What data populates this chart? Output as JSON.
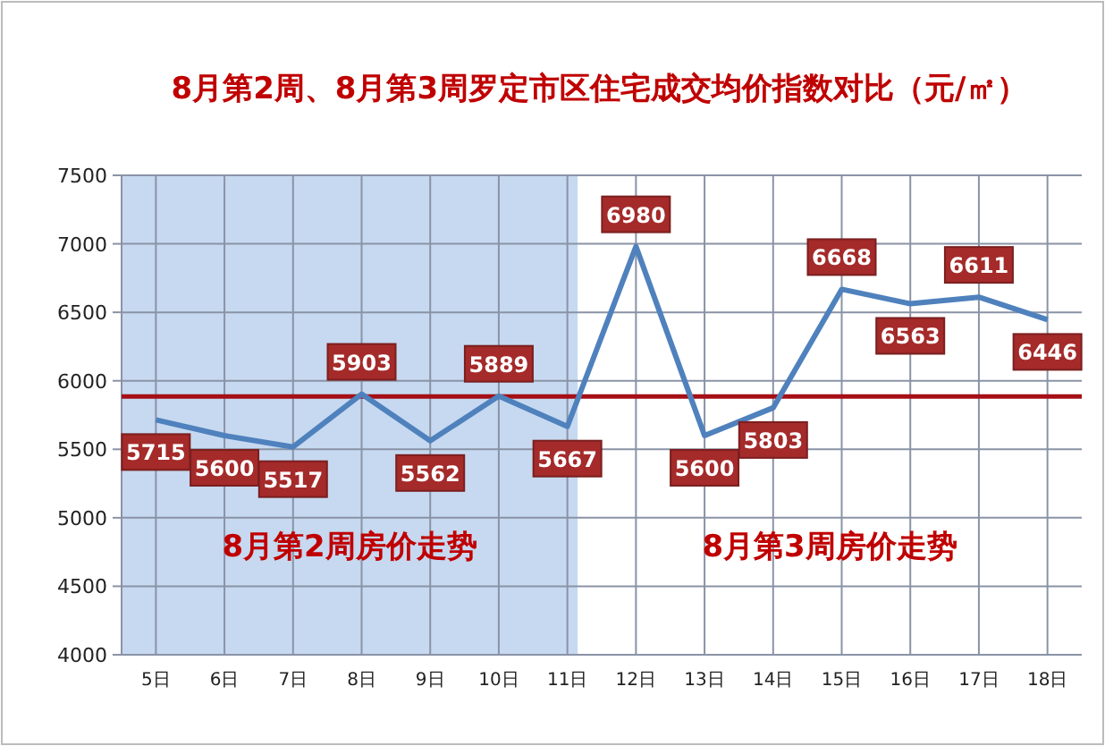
{
  "chart_data": {
    "type": "line",
    "title": "8月第2周、8月第3周罗定市区住宅成交均价指数对比（元/㎡）",
    "categories": [
      "5日",
      "6日",
      "7日",
      "8日",
      "9日",
      "10日",
      "11日",
      "12日",
      "13日",
      "14日",
      "15日",
      "16日",
      "17日",
      "18日"
    ],
    "series": [
      {
        "color": "#4f81bd",
        "values": [
          5715,
          5600,
          5517,
          5903,
          5562,
          5889,
          5667,
          6980,
          5600,
          5803,
          6668,
          6563,
          6611,
          6446
        ]
      }
    ],
    "data_labels": true,
    "ylim": [
      4000,
      7500
    ],
    "yticks": [
      4000,
      4500,
      5000,
      5500,
      6000,
      6500,
      7000,
      7500
    ],
    "grid": true,
    "marker": "none",
    "line_style": "solid",
    "ref_lines": [
      {
        "axis": "y",
        "value": 5885,
        "color": "#a50f15"
      }
    ],
    "bands": [
      {
        "axis": "x",
        "from": "5日",
        "to": "11日",
        "color": "#c6d9f0"
      }
    ],
    "annotations": [
      "8月第2周房价走势",
      "8月第3周房价走势"
    ]
  }
}
